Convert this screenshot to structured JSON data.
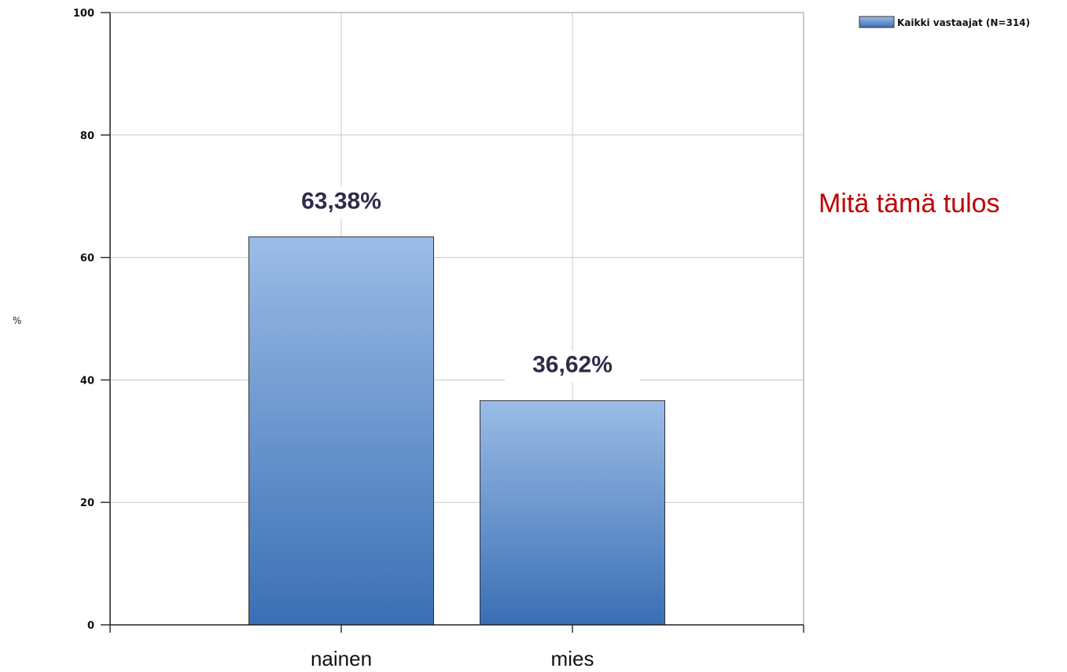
{
  "chart_data": {
    "type": "bar",
    "categories": [
      "nainen",
      "mies"
    ],
    "series": [
      {
        "name": "Kaikki vastaajat (N=314)",
        "values": [
          63.38,
          36.62
        ]
      }
    ],
    "data_labels": [
      "63,38%",
      "36,62%"
    ],
    "ylabel": "%",
    "ylim": [
      0,
      100
    ],
    "yticks": [
      0,
      20,
      40,
      60,
      80,
      100
    ],
    "grid": true,
    "legend": "top-right",
    "bar_color_top": "#9bbce6",
    "bar_color_bottom": "#3a6fb5"
  },
  "annotation": "Mitä tämä tulos"
}
